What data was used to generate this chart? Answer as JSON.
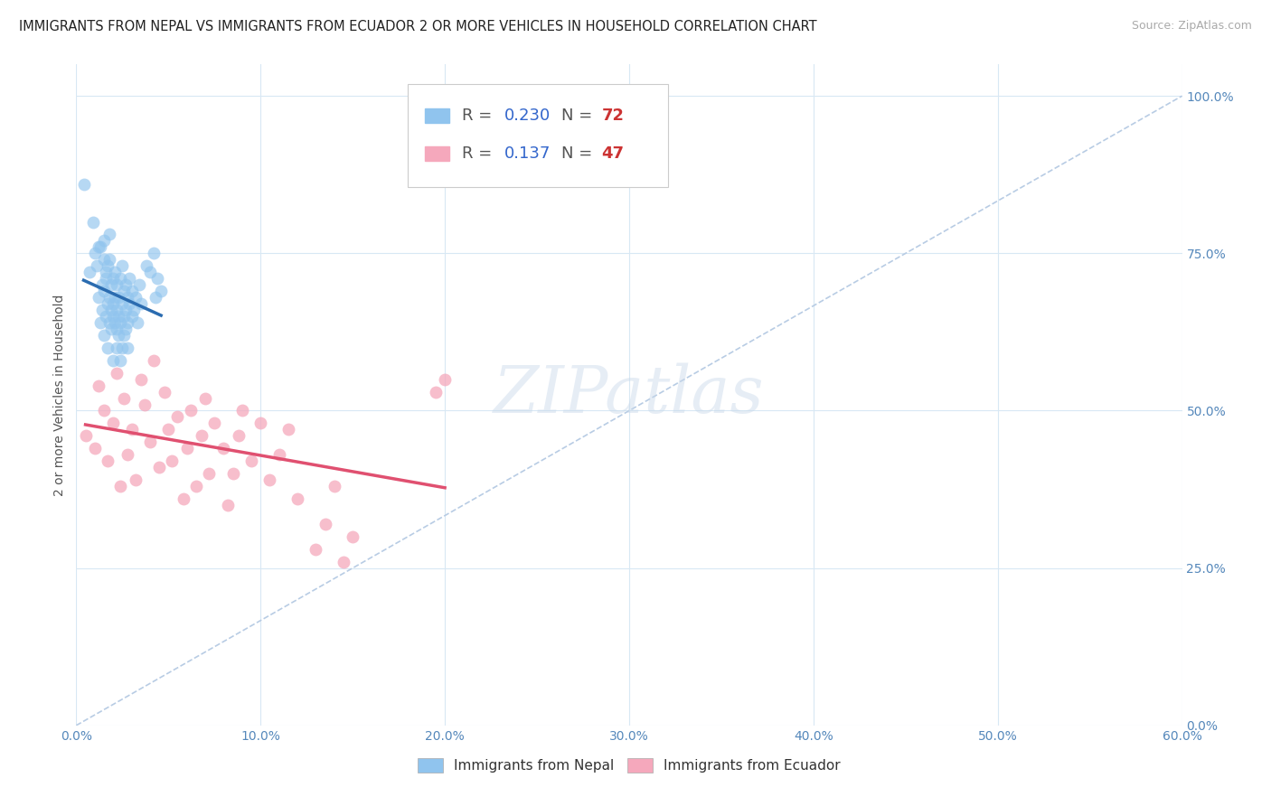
{
  "title": "IMMIGRANTS FROM NEPAL VS IMMIGRANTS FROM ECUADOR 2 OR MORE VEHICLES IN HOUSEHOLD CORRELATION CHART",
  "source": "Source: ZipAtlas.com",
  "ylabel": "2 or more Vehicles in Household",
  "xlim": [
    0.0,
    0.6
  ],
  "ylim": [
    0.0,
    1.05
  ],
  "xticks": [
    0.0,
    0.1,
    0.2,
    0.3,
    0.4,
    0.5,
    0.6
  ],
  "xticklabels": [
    "0.0%",
    "10.0%",
    "20.0%",
    "30.0%",
    "40.0%",
    "50.0%",
    "60.0%"
  ],
  "yticks": [
    0.0,
    0.25,
    0.5,
    0.75,
    1.0
  ],
  "yticklabels": [
    "0.0%",
    "25.0%",
    "50.0%",
    "75.0%",
    "100.0%"
  ],
  "nepal_R": 0.23,
  "nepal_N": 72,
  "ecuador_R": 0.137,
  "ecuador_N": 47,
  "nepal_color": "#90C4EE",
  "ecuador_color": "#F5A8BC",
  "nepal_line_color": "#2B6CB0",
  "ecuador_line_color": "#E05070",
  "ref_line_color": "#B8CCE4",
  "background_color": "#FFFFFF",
  "grid_color": "#D8E8F4",
  "nepal_scatter_x": [
    0.004,
    0.007,
    0.009,
    0.01,
    0.011,
    0.012,
    0.013,
    0.013,
    0.014,
    0.014,
    0.015,
    0.015,
    0.015,
    0.016,
    0.016,
    0.016,
    0.017,
    0.017,
    0.017,
    0.018,
    0.018,
    0.018,
    0.019,
    0.019,
    0.019,
    0.02,
    0.02,
    0.02,
    0.02,
    0.021,
    0.021,
    0.021,
    0.022,
    0.022,
    0.022,
    0.022,
    0.023,
    0.023,
    0.023,
    0.024,
    0.024,
    0.024,
    0.025,
    0.025,
    0.025,
    0.026,
    0.026,
    0.026,
    0.027,
    0.027,
    0.027,
    0.028,
    0.028,
    0.028,
    0.029,
    0.029,
    0.03,
    0.03,
    0.031,
    0.032,
    0.033,
    0.034,
    0.035,
    0.038,
    0.04,
    0.042,
    0.043,
    0.044,
    0.046,
    0.012,
    0.015,
    0.018
  ],
  "nepal_scatter_y": [
    0.86,
    0.72,
    0.8,
    0.75,
    0.73,
    0.68,
    0.76,
    0.64,
    0.7,
    0.66,
    0.74,
    0.69,
    0.62,
    0.72,
    0.65,
    0.71,
    0.67,
    0.73,
    0.6,
    0.68,
    0.64,
    0.74,
    0.66,
    0.7,
    0.63,
    0.65,
    0.71,
    0.67,
    0.58,
    0.68,
    0.64,
    0.72,
    0.6,
    0.66,
    0.7,
    0.63,
    0.62,
    0.68,
    0.65,
    0.64,
    0.71,
    0.58,
    0.67,
    0.73,
    0.6,
    0.65,
    0.69,
    0.62,
    0.66,
    0.7,
    0.63,
    0.64,
    0.68,
    0.6,
    0.67,
    0.71,
    0.65,
    0.69,
    0.66,
    0.68,
    0.64,
    0.7,
    0.67,
    0.73,
    0.72,
    0.75,
    0.68,
    0.71,
    0.69,
    0.76,
    0.77,
    0.78
  ],
  "ecuador_scatter_x": [
    0.005,
    0.01,
    0.012,
    0.015,
    0.017,
    0.02,
    0.022,
    0.024,
    0.026,
    0.028,
    0.03,
    0.032,
    0.035,
    0.037,
    0.04,
    0.042,
    0.045,
    0.048,
    0.05,
    0.052,
    0.055,
    0.058,
    0.06,
    0.062,
    0.065,
    0.068,
    0.07,
    0.072,
    0.075,
    0.08,
    0.082,
    0.085,
    0.088,
    0.09,
    0.095,
    0.1,
    0.105,
    0.11,
    0.115,
    0.12,
    0.13,
    0.135,
    0.14,
    0.145,
    0.15,
    0.195,
    0.2
  ],
  "ecuador_scatter_y": [
    0.46,
    0.44,
    0.54,
    0.5,
    0.42,
    0.48,
    0.56,
    0.38,
    0.52,
    0.43,
    0.47,
    0.39,
    0.55,
    0.51,
    0.45,
    0.58,
    0.41,
    0.53,
    0.47,
    0.42,
    0.49,
    0.36,
    0.44,
    0.5,
    0.38,
    0.46,
    0.52,
    0.4,
    0.48,
    0.44,
    0.35,
    0.4,
    0.46,
    0.5,
    0.42,
    0.48,
    0.39,
    0.43,
    0.47,
    0.36,
    0.28,
    0.32,
    0.38,
    0.26,
    0.3,
    0.53,
    0.55
  ]
}
